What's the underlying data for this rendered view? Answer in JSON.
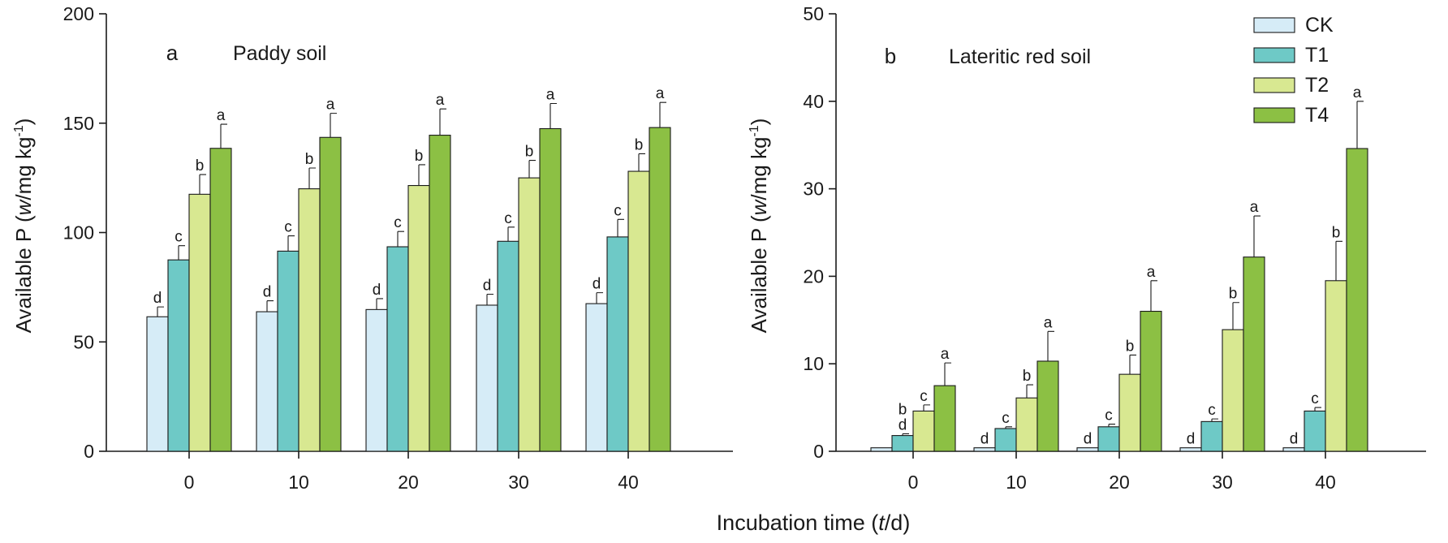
{
  "x_axis_label_prefix": "Incubation time (",
  "x_axis_label_var": "t",
  "x_axis_label_suffix": "/d)",
  "y_axis_label": {
    "prefix": "Available P (",
    "var": "w",
    "unit": "/mg kg",
    "sup": "-1",
    "suffix": ")"
  },
  "legend": [
    {
      "name": "CK",
      "color": "#d6ecf7"
    },
    {
      "name": "T1",
      "color": "#6ec9c6"
    },
    {
      "name": "T2",
      "color": "#d8e891"
    },
    {
      "name": "T4",
      "color": "#8cc044"
    }
  ],
  "chart_data": [
    {
      "type": "bar",
      "panel_letter": "a",
      "title": "Paddy soil",
      "categories": [
        "0",
        "10",
        "20",
        "30",
        "40"
      ],
      "ylim": [
        0,
        200
      ],
      "yticks": [
        "0",
        "50",
        "100",
        "150",
        "200"
      ],
      "series": [
        {
          "name": "CK",
          "values": [
            61.5,
            63.8,
            64.8,
            66.8,
            67.5
          ],
          "errors": [
            4.5,
            5,
            5,
            5,
            5
          ],
          "letters": [
            "d",
            "d",
            "d",
            "d",
            "d"
          ]
        },
        {
          "name": "T1",
          "values": [
            87.5,
            91.5,
            93.5,
            96,
            98
          ],
          "errors": [
            6.5,
            7,
            7,
            6.5,
            8
          ],
          "letters": [
            "c",
            "c",
            "c",
            "c",
            "c"
          ]
        },
        {
          "name": "T2",
          "values": [
            117.5,
            120,
            121.5,
            125,
            128
          ],
          "errors": [
            9,
            9.5,
            9.5,
            8,
            8
          ],
          "letters": [
            "b",
            "b",
            "b",
            "b",
            "b"
          ]
        },
        {
          "name": "T4",
          "values": [
            138.5,
            143.5,
            144.5,
            147.5,
            148
          ],
          "errors": [
            11,
            11,
            12,
            11.5,
            11.5
          ],
          "letters": [
            "a",
            "a",
            "a",
            "a",
            "a"
          ]
        }
      ]
    },
    {
      "type": "bar",
      "panel_letter": "b",
      "title": "Lateritic red soil",
      "categories": [
        "0",
        "10",
        "20",
        "30",
        "40"
      ],
      "ylim": [
        0,
        50
      ],
      "yticks": [
        "0",
        "10",
        "20",
        "30",
        "40",
        "50"
      ],
      "series": [
        {
          "name": "CK",
          "values": [
            0.4,
            0.4,
            0.4,
            0.4,
            0.4
          ],
          "errors": [
            0,
            0,
            0,
            0,
            0
          ],
          "letters": [
            "",
            "d",
            "d",
            "d",
            "d"
          ]
        },
        {
          "name": "T1",
          "values": [
            1.8,
            2.6,
            2.8,
            3.4,
            4.6
          ],
          "errors": [
            0.2,
            0.2,
            0.3,
            0.3,
            0.4
          ],
          "letters": [
            "d",
            "c",
            "c",
            "c",
            "c"
          ]
        },
        {
          "name": "T2",
          "values": [
            4.6,
            6.1,
            8.8,
            13.9,
            19.5
          ],
          "errors": [
            0.7,
            1.5,
            2.2,
            3.1,
            4.5
          ],
          "letters": [
            "c",
            "b",
            "b",
            "b",
            "b"
          ]
        },
        {
          "name": "T4",
          "values": [
            7.5,
            10.3,
            16,
            22.2,
            34.6
          ],
          "errors": [
            2.6,
            3.4,
            3.5,
            4.7,
            5.4
          ],
          "letters": [
            "a",
            "a",
            "a",
            "a",
            "a"
          ]
        }
      ],
      "extra_labels": [
        {
          "category": "0",
          "series": "T1",
          "text": "b"
        }
      ]
    }
  ]
}
